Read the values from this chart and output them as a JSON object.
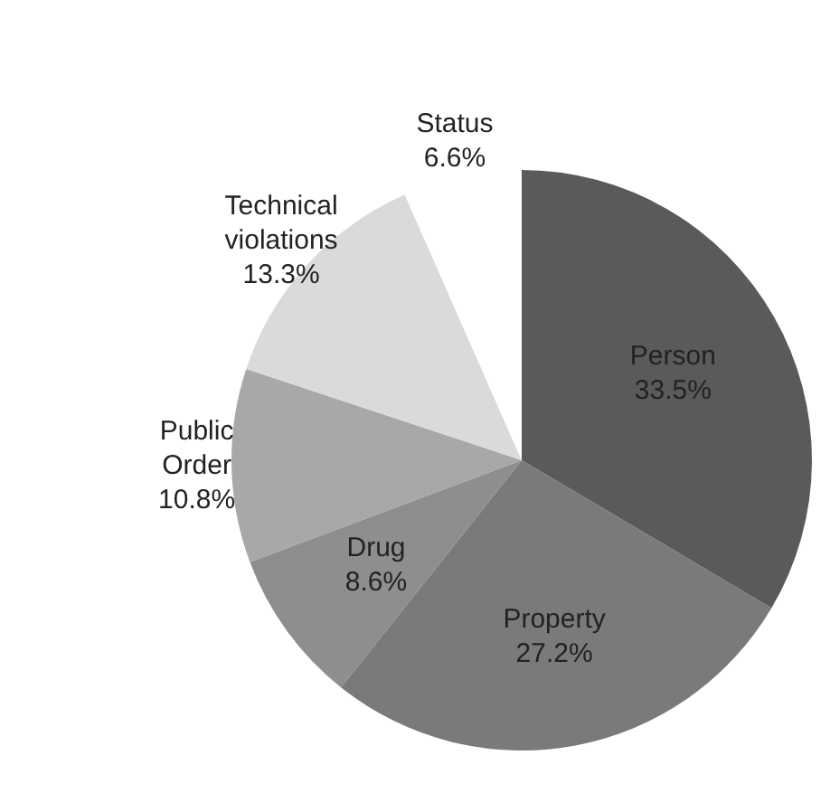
{
  "chart_data": {
    "type": "pie",
    "categories": [
      "Person",
      "Property",
      "Drug",
      "Public Order",
      "Technical violations",
      "Status"
    ],
    "values": [
      33.5,
      27.2,
      8.6,
      10.8,
      13.3,
      6.6
    ],
    "value_labels": [
      "33.5%",
      "27.2%",
      "8.6%",
      "10.8%",
      "13.3%",
      "6.6%"
    ],
    "colors": [
      "#5a5a5a",
      "#7a7a7a",
      "#8e8e8e",
      "#a8a8a8",
      "#dadada",
      "#ffffff"
    ],
    "legend": false
  }
}
